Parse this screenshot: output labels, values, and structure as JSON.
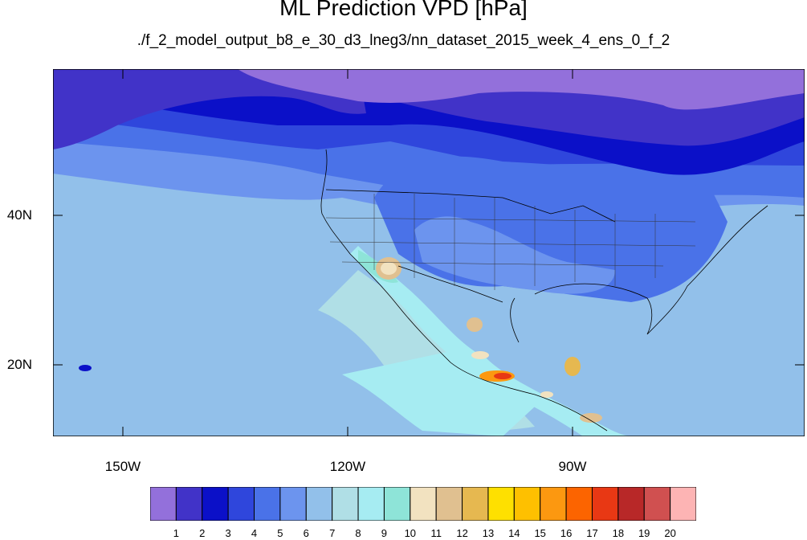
{
  "title": "ML Prediction VPD [hPa]",
  "subtitle": "./f_2_model_output_b8_e_30_d3_lneg3/nn_dataset_2015_week_4_ens_0_f_2",
  "lat_labels": [
    "40N",
    "20N"
  ],
  "lon_labels": [
    "150W",
    "120W",
    "90W"
  ],
  "colorbar": {
    "labels": [
      "1",
      "2",
      "3",
      "4",
      "5",
      "6",
      "7",
      "8",
      "9",
      "10",
      "11",
      "12",
      "13",
      "14",
      "15",
      "16",
      "17",
      "18",
      "19",
      "20"
    ],
    "colors": [
      "#9370db",
      "#4133c8",
      "#0b10c8",
      "#2f46dc",
      "#4a72e8",
      "#6c94ee",
      "#92c0ea",
      "#b0dfe6",
      "#a6ecf2",
      "#8ee4d8",
      "#f2e2c0",
      "#e0c090",
      "#e6b850",
      "#fee000",
      "#fec000",
      "#fc9810",
      "#fc6400",
      "#e83814",
      "#b82828",
      "#d05050",
      "#fdb4b4"
    ]
  },
  "map": {
    "projection": "cylindrical equidistant",
    "lon_range": [
      -161,
      -61
    ],
    "lat_range": [
      10,
      59
    ],
    "field": "VPD"
  }
}
